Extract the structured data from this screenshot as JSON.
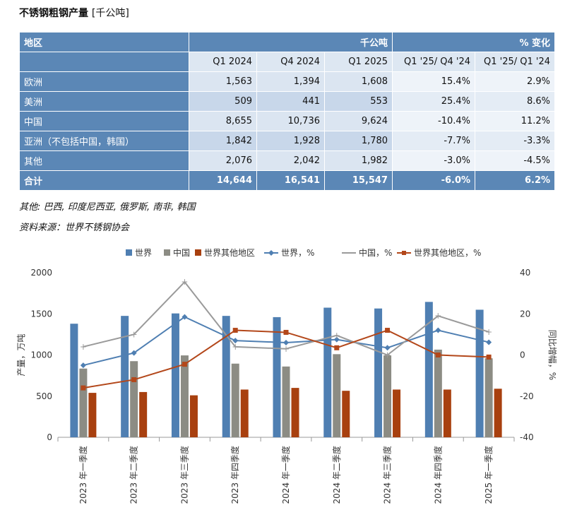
{
  "table": {
    "title": "不锈钢粗钢产量",
    "unit": "[千公吨]",
    "header": {
      "region": "地区",
      "unit_label": "千公吨",
      "change_label": "% 变化"
    },
    "subheaders": [
      "Q1 2024",
      "Q4 2024",
      "Q1 2025",
      "Q1 '25/ Q4 '24",
      "Q1 '25/ Q1 '24"
    ],
    "rows": [
      {
        "region": "欧洲",
        "q1_2024": "1,563",
        "q4_2024": "1,394",
        "q1_2025": "1,608",
        "chg_q4": "15.4%",
        "chg_q1": "2.9%"
      },
      {
        "region": "美洲",
        "q1_2024": "509",
        "q4_2024": "441",
        "q1_2025": "553",
        "chg_q4": "25.4%",
        "chg_q1": "8.6%"
      },
      {
        "region": "中国",
        "q1_2024": "8,655",
        "q4_2024": "10,736",
        "q1_2025": "9,624",
        "chg_q4": "-10.4%",
        "chg_q1": "11.2%"
      },
      {
        "region": "亚洲（不包括中国，韩国）",
        "q1_2024": "1,842",
        "q4_2024": "1,928",
        "q1_2025": "1,780",
        "chg_q4": "-7.7%",
        "chg_q1": "-3.3%"
      },
      {
        "region": "其他",
        "q1_2024": "2,076",
        "q4_2024": "2,042",
        "q1_2025": "1,982",
        "chg_q4": "-3.0%",
        "chg_q1": "-4.5%"
      }
    ],
    "total": {
      "region": "合计",
      "q1_2024": "14,644",
      "q4_2024": "16,541",
      "q1_2025": "15,547",
      "chg_q4": "-6.0%",
      "chg_q1": "6.2%"
    }
  },
  "notes": {
    "others": "其他: 巴西, 印度尼西亚, 俄罗斯, 南非, 韩国",
    "source": "资料来源：世界不锈钢协会"
  },
  "colors": {
    "world": "#4f7fb2",
    "china": "#8c8c84",
    "rest": "#a8400f",
    "world_line": "#4f7fb2",
    "china_line": "#9a9a9a",
    "rest_line": "#b3471a"
  },
  "chart_data": {
    "type": "bar",
    "categories": [
      "2023 年一季度",
      "2023 年二季度",
      "2023 年三季度",
      "2023 年四季度",
      "2024 年一季度",
      "2024 年二季度",
      "2024 年三季度",
      "2024 年四季度",
      "2025 年一季度"
    ],
    "series": [
      {
        "name": "世界",
        "kind": "bar",
        "axis": "left",
        "values": [
          1380,
          1475,
          1505,
          1475,
          1460,
          1575,
          1565,
          1645,
          1550
        ]
      },
      {
        "name": "中国",
        "kind": "bar",
        "axis": "left",
        "values": [
          835,
          925,
          995,
          895,
          860,
          1010,
          995,
          1065,
          960
        ]
      },
      {
        "name": "世界其他地区",
        "kind": "bar",
        "axis": "left",
        "values": [
          540,
          550,
          510,
          580,
          600,
          565,
          580,
          580,
          590
        ]
      },
      {
        "name": "世界，%",
        "kind": "line",
        "axis": "right",
        "values": [
          -5,
          1,
          18.5,
          7,
          6,
          7.5,
          3.5,
          12,
          6.2
        ]
      },
      {
        "name": "中国，%",
        "kind": "line",
        "axis": "right",
        "values": [
          4,
          10,
          35.5,
          4,
          3,
          9.5,
          0,
          19,
          11.2
        ]
      },
      {
        "name": "世界其他地区，%",
        "kind": "line",
        "axis": "right",
        "values": [
          -16,
          -12,
          -4.5,
          12,
          11,
          3.5,
          12,
          0,
          -1
        ]
      }
    ],
    "title": "",
    "xlabel": "",
    "ylabel": "产量，万吨",
    "y2label": "同比增幅，%",
    "ylim": [
      0,
      2000
    ],
    "y2lim": [
      -40,
      40
    ],
    "yticks": [
      0,
      500,
      1000,
      1500,
      2000
    ],
    "y2ticks": [
      -40,
      -20,
      0,
      20,
      40
    ],
    "legend": "top"
  }
}
